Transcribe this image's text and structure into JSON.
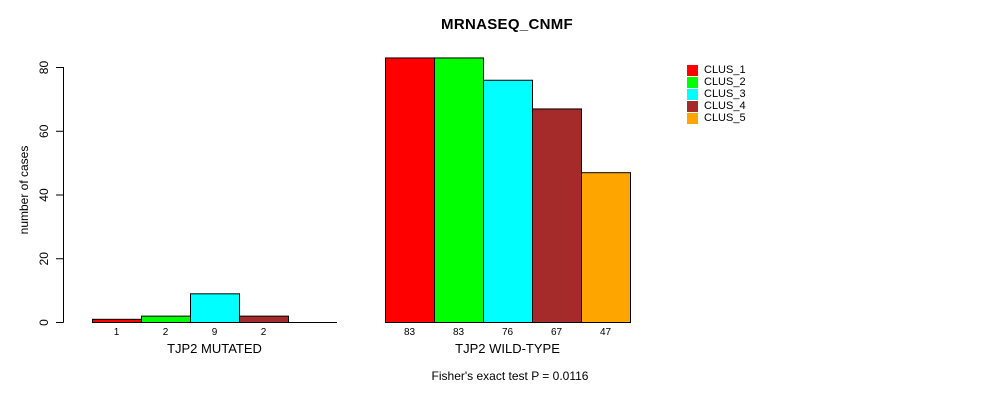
{
  "chart_data": {
    "type": "bar",
    "title": "MRNASEQ_CNMF",
    "ylabel": "number of cases",
    "xlabel": "",
    "ylim": [
      0,
      80
    ],
    "yticks": [
      0,
      20,
      40,
      60,
      80
    ],
    "grid": false,
    "legend_position": "right",
    "series_colors": [
      "#FF0000",
      "#00FF00",
      "#00FFFF",
      "#A52A2A",
      "#FFA500"
    ],
    "legend": [
      {
        "label": "CLUS_1",
        "color": "#FF0000"
      },
      {
        "label": "CLUS_2",
        "color": "#00FF00"
      },
      {
        "label": "CLUS_3",
        "color": "#00FFFF"
      },
      {
        "label": "CLUS_4",
        "color": "#A52A2A"
      },
      {
        "label": "CLUS_5",
        "color": "#FFA500"
      }
    ],
    "groups": [
      {
        "label": "TJP2 MUTATED",
        "values": [
          1,
          2,
          9,
          2,
          0
        ],
        "value_labels": [
          "1",
          "2",
          "9",
          "2",
          ""
        ]
      },
      {
        "label": "TJP2 WILD-TYPE",
        "values": [
          83,
          83,
          76,
          67,
          47
        ],
        "value_labels": [
          "83",
          "83",
          "76",
          "67",
          "47"
        ]
      }
    ],
    "annotation": "Fisher's exact test P = 0.0116"
  }
}
